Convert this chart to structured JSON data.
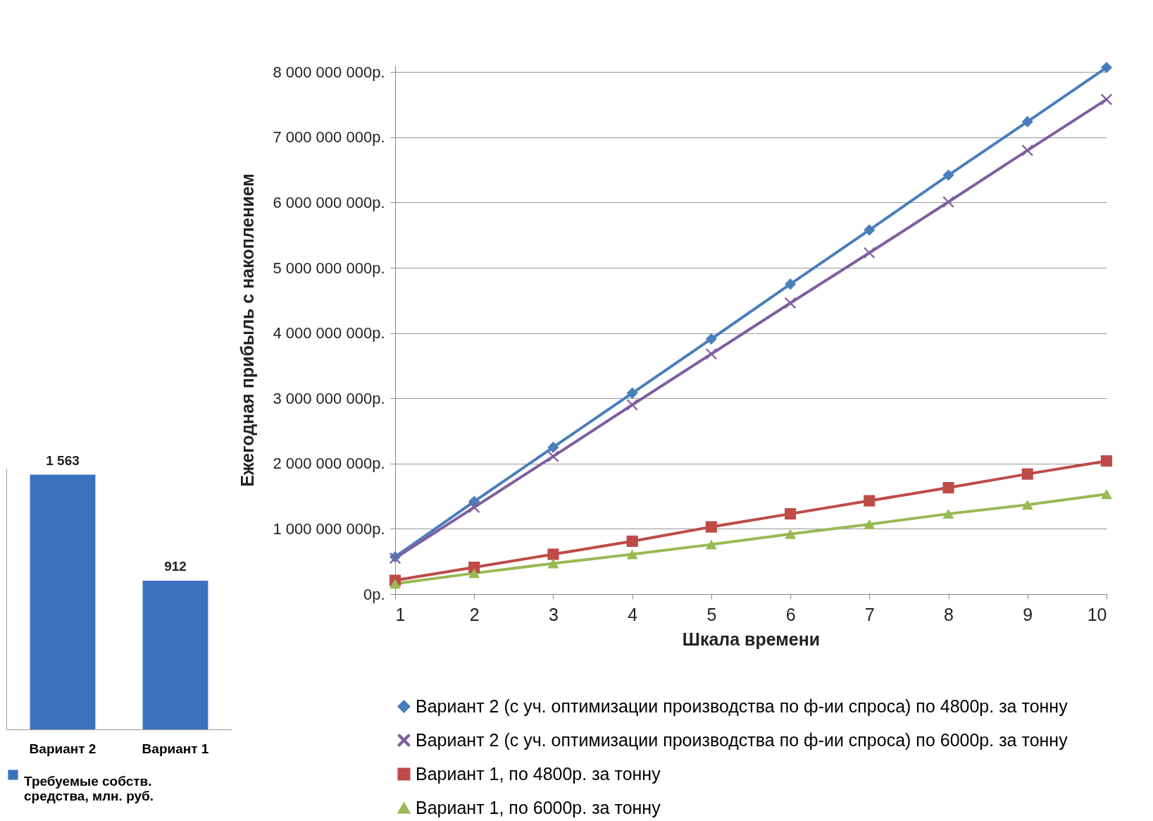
{
  "chart_data": [
    {
      "type": "bar",
      "categories": [
        "Вариант 2",
        "Вариант 1"
      ],
      "series": [
        {
          "name": "Требуемые собств. средства, млн. руб.",
          "color": "#3a72c0",
          "values": [
            1563,
            912
          ]
        }
      ],
      "data_labels": true,
      "legend": "bottom",
      "tick_labels": "x"
    },
    {
      "type": "line",
      "xlabel": "Шкала времени",
      "ylabel": "Ежегодная прибыль с накоплением",
      "x": [
        1,
        2,
        3,
        4,
        5,
        6,
        7,
        8,
        9,
        10
      ],
      "xlim": [
        1,
        10
      ],
      "xticks": [
        1,
        2,
        3,
        4,
        5,
        6,
        7,
        8,
        9,
        10
      ],
      "ylim": [
        0,
        8100000000
      ],
      "yticks": [
        {
          "value": 0,
          "label": "0р."
        },
        {
          "value": 1000000000,
          "label": "1 000 000 000р."
        },
        {
          "value": 2000000000,
          "label": "2 000 000 000р."
        },
        {
          "value": 3000000000,
          "label": "3 000 000 000р."
        },
        {
          "value": 4000000000,
          "label": "4 000 000 000р."
        },
        {
          "value": 5000000000,
          "label": "5 000 000 000р."
        },
        {
          "value": 6000000000,
          "label": "6 000 000 000р."
        },
        {
          "value": 7000000000,
          "label": "7 000 000 000р."
        },
        {
          "value": 8000000000,
          "label": "8 000 000 000р."
        }
      ],
      "grid": "y",
      "legend": "bottom",
      "line_style": "solid",
      "series": [
        {
          "name": "Вариант 2 (с уч. оптимизации производства по ф-ии спроса) по 4800р. за тонну",
          "color": "#4a7ebb",
          "marker": "diamond",
          "values": [
            570000000,
            1420000000,
            2250000000,
            3080000000,
            3910000000,
            4750000000,
            5580000000,
            6420000000,
            7240000000,
            8070000000
          ]
        },
        {
          "name": "Вариант 2 (с уч. оптимизации производства по ф-ии спроса) по 6000р. за тонну",
          "color": "#7e5fa0",
          "marker": "cross",
          "values": [
            550000000,
            1330000000,
            2110000000,
            2900000000,
            3680000000,
            4460000000,
            5230000000,
            6010000000,
            6800000000,
            7580000000
          ]
        },
        {
          "name": "Вариант 1, по 4800р. за тонну",
          "color": "#be4b48",
          "marker": "square",
          "values": [
            210000000,
            410000000,
            610000000,
            810000000,
            1030000000,
            1230000000,
            1430000000,
            1630000000,
            1840000000,
            2040000000
          ]
        },
        {
          "name": "Вариант 1, по 6000р. за тонну",
          "color": "#98b954",
          "marker": "triangle",
          "values": [
            160000000,
            320000000,
            470000000,
            610000000,
            760000000,
            920000000,
            1070000000,
            1230000000,
            1370000000,
            1530000000
          ]
        }
      ]
    }
  ]
}
